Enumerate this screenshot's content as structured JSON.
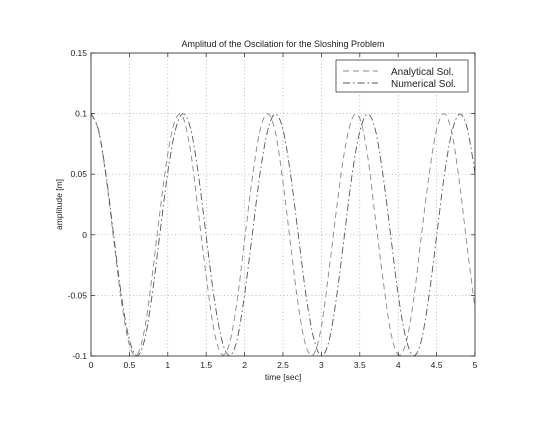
{
  "chart_data": {
    "type": "line",
    "title": "Amplitud of the Oscilation for the Sloshing Problem",
    "xlabel": "time [sec]",
    "ylabel": "amplitude [m]",
    "xlim": [
      0,
      5
    ],
    "ylim": [
      -0.1,
      0.15
    ],
    "xticks": [
      0,
      0.5,
      1,
      1.5,
      2,
      2.5,
      3,
      3.5,
      4,
      4.5,
      5
    ],
    "xtick_labels": [
      "0",
      "0.5",
      "1",
      "1.5",
      "2",
      "2.5",
      "3",
      "3.5",
      "4",
      "4.5",
      "5"
    ],
    "yticks": [
      -0.1,
      -0.05,
      0,
      0.05,
      0.1,
      0.15
    ],
    "ytick_labels": [
      "-0.1",
      "-0.05",
      "0",
      "0.05",
      "0.1",
      "0.15"
    ],
    "grid": true,
    "legend_position": "top-right",
    "series": [
      {
        "name": "Analytical Sol.",
        "style": "dashed",
        "color": "#888888",
        "x": [
          0,
          0.1,
          0.2,
          0.3,
          0.4,
          0.5,
          0.6,
          0.7,
          0.8,
          0.9,
          1.0,
          1.1,
          1.2,
          1.3,
          1.4,
          1.5,
          1.6,
          1.7,
          1.8,
          1.9,
          2.0,
          2.1,
          2.2,
          2.3,
          2.4,
          2.5,
          2.6,
          2.7,
          2.8,
          2.9,
          3.0,
          3.1,
          3.2,
          3.3,
          3.4,
          3.5,
          3.6,
          3.7,
          3.8,
          3.9,
          4.0,
          4.1,
          4.2,
          4.3,
          4.4,
          4.5,
          4.6,
          4.7,
          4.8,
          4.9,
          5.0
        ],
        "y": [
          0.1,
          0.0854,
          0.0458,
          -0.0062,
          -0.0566,
          -0.091,
          -0.0988,
          -0.0771,
          -0.0319,
          0.0204,
          0.0669,
          0.0953,
          0.0966,
          0.0675,
          0.0172,
          -0.034,
          -0.0784,
          -0.0986,
          -0.0904,
          -0.0557,
          -0.0042,
          0.0466,
          0.0859,
          0.0999,
          0.0846,
          0.0437,
          -0.0089,
          -0.0588,
          -0.0919,
          -0.0984,
          -0.0756,
          -0.0289,
          0.0229,
          0.0685,
          0.0959,
          0.0962,
          0.0659,
          0.0149,
          -0.0357,
          -0.0794,
          -0.0989,
          -0.0895,
          -0.0541,
          -0.0018,
          0.0484,
          0.0868,
          0.0999,
          0.0838,
          0.0421,
          -0.0111,
          -0.0603
        ]
      },
      {
        "name": "Numerical Sol.",
        "style": "dashdot",
        "color": "#555555",
        "x": [
          0,
          0.1,
          0.2,
          0.3,
          0.4,
          0.5,
          0.6,
          0.7,
          0.8,
          0.9,
          1.0,
          1.1,
          1.2,
          1.3,
          1.4,
          1.5,
          1.6,
          1.7,
          1.8,
          1.9,
          2.0,
          2.1,
          2.2,
          2.3,
          2.4,
          2.5,
          2.6,
          2.7,
          2.8,
          2.9,
          3.0,
          3.1,
          3.2,
          3.3,
          3.4,
          3.5,
          3.6,
          3.7,
          3.8,
          3.9,
          4.0,
          4.1,
          4.2,
          4.3,
          4.4,
          4.5,
          4.6,
          4.7,
          4.8,
          4.9,
          5.0
        ],
        "y": [
          0.1,
          0.0859,
          0.0475,
          -0.0028,
          -0.0521,
          -0.0867,
          -0.0998,
          -0.0861,
          -0.0478,
          0.0024,
          0.0517,
          0.0868,
          0.0998,
          0.0867,
          0.049,
          -0.0011,
          -0.0506,
          -0.086,
          -0.0997,
          -0.087,
          -0.0493,
          0.0004,
          0.0502,
          0.0858,
          0.0996,
          0.0868,
          0.0493,
          -0.0004,
          -0.05,
          -0.0855,
          -0.0997,
          -0.0873,
          -0.05,
          -0.0003,
          0.0497,
          0.0853,
          0.0996,
          0.0873,
          0.0501,
          0.0005,
          -0.0495,
          -0.0852,
          -0.0997,
          -0.0876,
          -0.0507,
          -0.0012,
          0.049,
          0.0849,
          0.0996,
          0.0876,
          0.0509
        ]
      }
    ]
  }
}
